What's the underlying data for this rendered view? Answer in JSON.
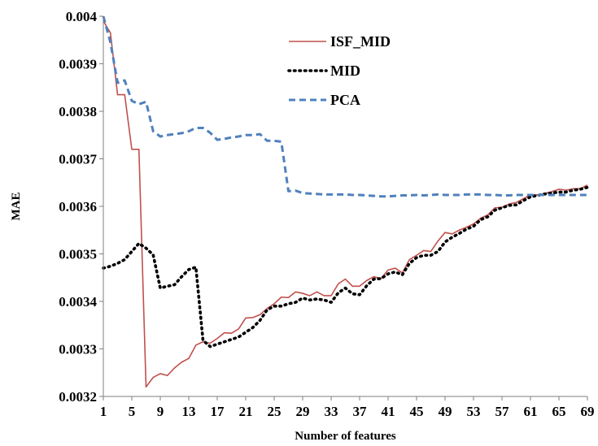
{
  "chart_data": {
    "type": "line",
    "title": "",
    "xlabel": "Number of features",
    "ylabel": "MAE",
    "xlim": [
      1,
      69
    ],
    "ylim": [
      0.0032,
      0.004
    ],
    "x_ticks": [
      "1",
      "5",
      "9",
      "13",
      "17",
      "21",
      "25",
      "29",
      "33",
      "37",
      "41",
      "45",
      "49",
      "53",
      "57",
      "61",
      "65",
      "69"
    ],
    "y_ticks": [
      "0.0032",
      "0.0033",
      "0.0034",
      "0.0035",
      "0.0036",
      "0.0037",
      "0.0038",
      "0.0039",
      "0.004"
    ],
    "grid": false,
    "legend_position": "top-center",
    "x": [
      1,
      2,
      3,
      4,
      5,
      6,
      7,
      8,
      9,
      10,
      11,
      12,
      13,
      14,
      15,
      16,
      17,
      18,
      19,
      20,
      21,
      22,
      23,
      24,
      25,
      26,
      27,
      28,
      29,
      30,
      31,
      32,
      33,
      34,
      35,
      36,
      37,
      38,
      39,
      40,
      41,
      42,
      43,
      44,
      45,
      46,
      47,
      48,
      49,
      50,
      51,
      52,
      53,
      54,
      55,
      56,
      57,
      58,
      59,
      60,
      61,
      62,
      63,
      64,
      65,
      66,
      67,
      68,
      69
    ],
    "series": [
      {
        "name": "ISF_MID",
        "color": "#c0504d",
        "style": "solid",
        "values": [
          0.00399,
          0.003965,
          0.003835,
          0.003835,
          0.00372,
          0.00372,
          0.00322,
          0.00324,
          0.003248,
          0.003244,
          0.00326,
          0.003272,
          0.00328,
          0.003308,
          0.003315,
          0.003312,
          0.003322,
          0.003334,
          0.003333,
          0.003342,
          0.003365,
          0.003366,
          0.003372,
          0.003385,
          0.003395,
          0.003409,
          0.003408,
          0.00342,
          0.003417,
          0.003412,
          0.00342,
          0.003412,
          0.003412,
          0.003437,
          0.003447,
          0.003432,
          0.003432,
          0.003444,
          0.003452,
          0.003448,
          0.003466,
          0.00347,
          0.00346,
          0.003488,
          0.003497,
          0.003507,
          0.003505,
          0.003527,
          0.003545,
          0.003542,
          0.00355,
          0.003556,
          0.003563,
          0.003575,
          0.003582,
          0.003597,
          0.003598,
          0.003605,
          0.003608,
          0.003616,
          0.003624,
          0.003624,
          0.003627,
          0.003631,
          0.003636,
          0.003634,
          0.003637,
          0.003637,
          0.003645
        ]
      },
      {
        "name": "MID",
        "color": "#000000",
        "style": "dotted",
        "values": [
          0.00347,
          0.003474,
          0.00348,
          0.003488,
          0.003505,
          0.003522,
          0.003512,
          0.003498,
          0.003428,
          0.003432,
          0.003435,
          0.003452,
          0.003467,
          0.003472,
          0.003318,
          0.003305,
          0.00331,
          0.003315,
          0.00332,
          0.003325,
          0.003335,
          0.003345,
          0.00336,
          0.003382,
          0.00339,
          0.00339,
          0.003395,
          0.003398,
          0.003407,
          0.003403,
          0.003405,
          0.003403,
          0.003398,
          0.003418,
          0.003428,
          0.003416,
          0.003414,
          0.003433,
          0.003447,
          0.003448,
          0.003458,
          0.003462,
          0.003456,
          0.00348,
          0.003492,
          0.003497,
          0.003497,
          0.003505,
          0.003525,
          0.003535,
          0.003543,
          0.003552,
          0.003558,
          0.003572,
          0.003578,
          0.003592,
          0.003597,
          0.003602,
          0.003603,
          0.003612,
          0.00362,
          0.003623,
          0.003626,
          0.003628,
          0.00363,
          0.00363,
          0.003634,
          0.003636,
          0.00364
        ]
      },
      {
        "name": "PCA",
        "color": "#4f81bd",
        "style": "dashed",
        "values": [
          0.004,
          0.003945,
          0.00386,
          0.003865,
          0.003822,
          0.003815,
          0.00382,
          0.003758,
          0.003747,
          0.00375,
          0.003752,
          0.003754,
          0.003758,
          0.003765,
          0.003765,
          0.003755,
          0.00374,
          0.003742,
          0.003745,
          0.003747,
          0.00375,
          0.00375,
          0.003752,
          0.003738,
          0.003738,
          0.003736,
          0.003632,
          0.003633,
          0.003628,
          0.003627,
          0.003626,
          0.003625,
          0.003625,
          0.003625,
          0.003625,
          0.003624,
          0.003624,
          0.003623,
          0.003622,
          0.003621,
          0.003621,
          0.003622,
          0.003623,
          0.003623,
          0.003624,
          0.003623,
          0.003624,
          0.003625,
          0.003624,
          0.003624,
          0.003624,
          0.003625,
          0.003625,
          0.003625,
          0.003624,
          0.003624,
          0.003623,
          0.003623,
          0.003624,
          0.003624,
          0.003624,
          0.003624,
          0.003624,
          0.003624,
          0.003624,
          0.003624,
          0.003624,
          0.003624,
          0.003624
        ]
      }
    ]
  }
}
